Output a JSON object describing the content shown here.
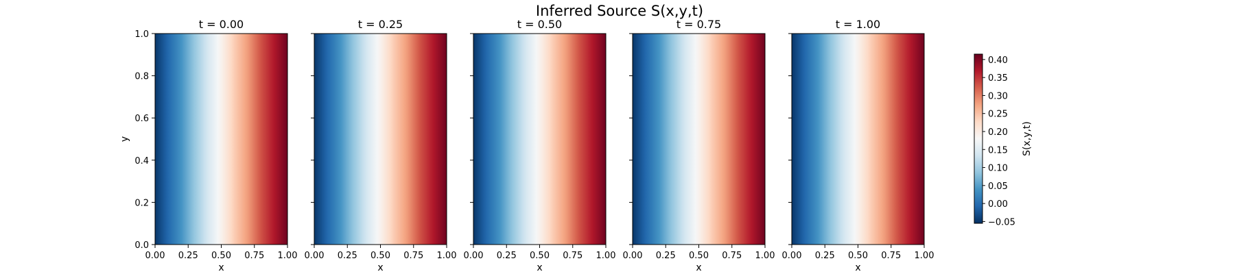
{
  "chart_data": {
    "type": "heatmap",
    "title": "Inferred Source S(x,y,t)",
    "colormap": "RdBu_r",
    "colormap_stops": [
      "#053061",
      "#2166ac",
      "#4393c3",
      "#92c5de",
      "#d1e5f0",
      "#f7f7f7",
      "#fddbc7",
      "#f4a582",
      "#d6604d",
      "#b2182b",
      "#67001f"
    ],
    "value_range": [
      -0.055,
      0.415
    ],
    "field_profile_x": {
      "x": [
        0.0,
        0.1,
        0.2,
        0.3,
        0.4,
        0.5,
        0.6,
        0.7,
        0.8,
        0.9,
        1.0
      ],
      "S": [
        -0.05,
        -0.005,
        0.04,
        0.09,
        0.14,
        0.19,
        0.24,
        0.28,
        0.33,
        0.37,
        0.41
      ],
      "note_depends_on": "x only; uniform in y; nearly identical across t"
    },
    "panels": [
      {
        "title": "t = 0.00",
        "t": 0.0
      },
      {
        "title": "t = 0.25",
        "t": 0.25
      },
      {
        "title": "t = 0.50",
        "t": 0.5
      },
      {
        "title": "t = 0.75",
        "t": 0.75
      },
      {
        "title": "t = 1.00",
        "t": 1.0
      }
    ],
    "xlabel": "x",
    "ylabel": "y",
    "xlim": [
      0.0,
      1.0
    ],
    "ylim": [
      0.0,
      1.0
    ],
    "xticks": [
      "0.00",
      "0.25",
      "0.50",
      "0.75",
      "1.00"
    ],
    "yticks": [
      "0.0",
      "0.2",
      "0.4",
      "0.6",
      "0.8",
      "1.0"
    ],
    "colorbar": {
      "label": "S(x,y,t)",
      "ticks": [
        -0.05,
        0.0,
        0.05,
        0.1,
        0.15,
        0.2,
        0.25,
        0.3,
        0.35,
        0.4
      ],
      "tick_labels": [
        "−0.05",
        "0.00",
        "0.05",
        "0.10",
        "0.15",
        "0.20",
        "0.25",
        "0.30",
        "0.35",
        "0.40"
      ]
    }
  }
}
